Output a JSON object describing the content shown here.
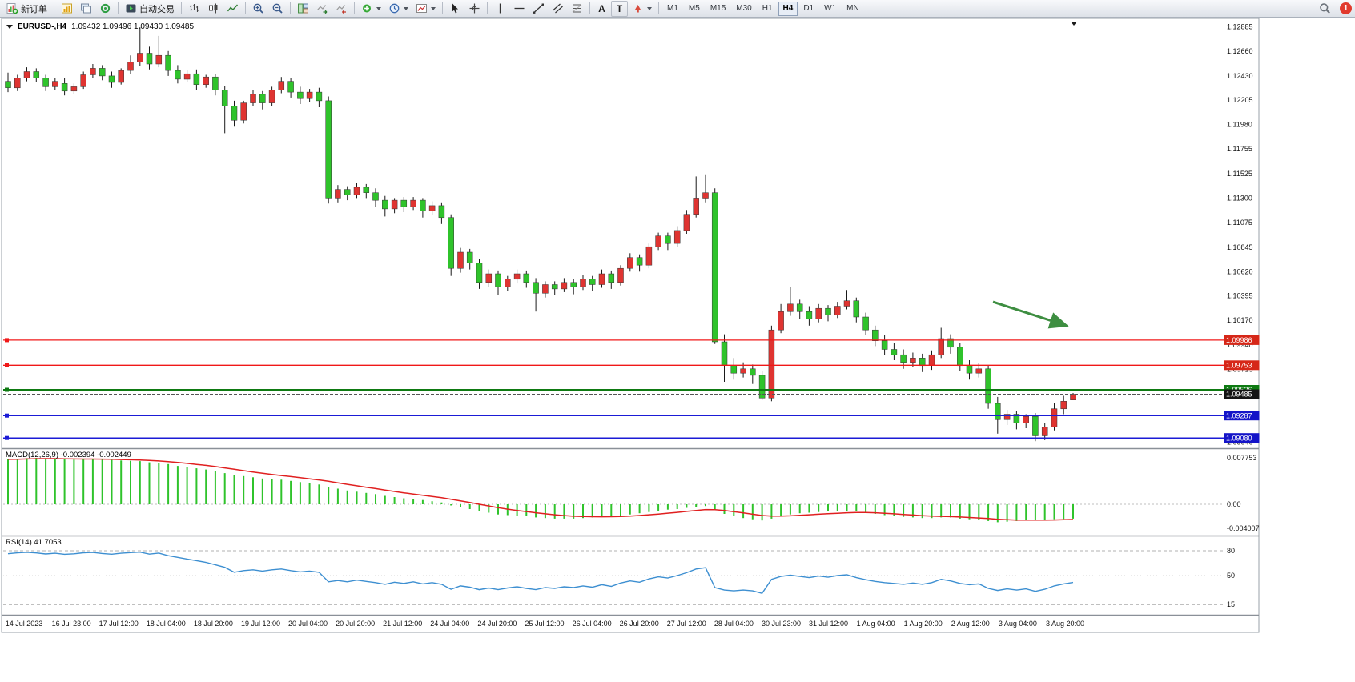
{
  "toolbar": {
    "new_order": "新订单",
    "auto_trading": "自动交易",
    "text_tool": "A",
    "label_tool": "T",
    "timeframes": [
      "M1",
      "M5",
      "M15",
      "M30",
      "H1",
      "H4",
      "D1",
      "W1",
      "MN"
    ],
    "active_timeframe": "H4",
    "notification_count": "1"
  },
  "chart_data": [
    {
      "type": "candlestick",
      "symbol": "EURUSD",
      "timeframe": "H4",
      "symbol_label": "EURUSD-,H4",
      "ohlc_label": "1.09432 1.09496 1.09430 1.09485",
      "ylim": [
        1.09,
        1.1294
      ],
      "colors": {
        "up": "#df3431",
        "down": "#2fc32b",
        "wick": "#1a1a1a",
        "body_border": "#333333"
      },
      "candles": [
        [
          1.1238,
          1.1246,
          1.1228,
          1.1232
        ],
        [
          1.1232,
          1.1244,
          1.1229,
          1.1241
        ],
        [
          1.1241,
          1.1251,
          1.1238,
          1.1247
        ],
        [
          1.1247,
          1.125,
          1.1237,
          1.1241
        ],
        [
          1.1241,
          1.1244,
          1.1229,
          1.1233
        ],
        [
          1.1233,
          1.1241,
          1.123,
          1.1238
        ],
        [
          1.1236,
          1.1241,
          1.1225,
          1.1229
        ],
        [
          1.1229,
          1.1236,
          1.1226,
          1.1233
        ],
        [
          1.1233,
          1.1247,
          1.1231,
          1.1244
        ],
        [
          1.1244,
          1.1254,
          1.1241,
          1.125
        ],
        [
          1.125,
          1.1253,
          1.1239,
          1.1243
        ],
        [
          1.1243,
          1.1247,
          1.1232,
          1.1237
        ],
        [
          1.1237,
          1.125,
          1.1235,
          1.1248
        ],
        [
          1.1248,
          1.1262,
          1.1245,
          1.1256
        ],
        [
          1.1256,
          1.1288,
          1.1252,
          1.1264
        ],
        [
          1.1264,
          1.127,
          1.1249,
          1.1254
        ],
        [
          1.1254,
          1.128,
          1.1251,
          1.1262
        ],
        [
          1.1262,
          1.1266,
          1.1243,
          1.1248
        ],
        [
          1.1248,
          1.1253,
          1.1236,
          1.124
        ],
        [
          1.124,
          1.1248,
          1.1237,
          1.1245
        ],
        [
          1.1245,
          1.1249,
          1.123,
          1.1235
        ],
        [
          1.1235,
          1.1244,
          1.1232,
          1.1242
        ],
        [
          1.1242,
          1.1245,
          1.1225,
          1.123
        ],
        [
          1.123,
          1.1234,
          1.119,
          1.1215
        ],
        [
          1.1215,
          1.122,
          1.1196,
          1.1202
        ],
        [
          1.1202,
          1.122,
          1.1199,
          1.1218
        ],
        [
          1.1218,
          1.123,
          1.1215,
          1.1226
        ],
        [
          1.1226,
          1.1229,
          1.1212,
          1.1218
        ],
        [
          1.1218,
          1.1233,
          1.1215,
          1.123
        ],
        [
          1.123,
          1.1242,
          1.1227,
          1.1238
        ],
        [
          1.1238,
          1.1241,
          1.1223,
          1.1228
        ],
        [
          1.1228,
          1.1233,
          1.1217,
          1.1222
        ],
        [
          1.1222,
          1.1231,
          1.1219,
          1.1228
        ],
        [
          1.1228,
          1.1232,
          1.1214,
          1.122
        ],
        [
          1.122,
          1.1224,
          1.1125,
          1.113
        ],
        [
          1.113,
          1.1142,
          1.1126,
          1.1138
        ],
        [
          1.1138,
          1.1141,
          1.1128,
          1.1133
        ],
        [
          1.1133,
          1.1144,
          1.113,
          1.114
        ],
        [
          1.114,
          1.1143,
          1.113,
          1.1135
        ],
        [
          1.1135,
          1.1139,
          1.1122,
          1.1128
        ],
        [
          1.1128,
          1.1132,
          1.1113,
          1.112
        ],
        [
          1.112,
          1.113,
          1.1116,
          1.1128
        ],
        [
          1.1128,
          1.1131,
          1.1117,
          1.1122
        ],
        [
          1.1122,
          1.1131,
          1.1119,
          1.1128
        ],
        [
          1.1128,
          1.113,
          1.1112,
          1.1118
        ],
        [
          1.1118,
          1.1127,
          1.1114,
          1.1123
        ],
        [
          1.1123,
          1.1126,
          1.1106,
          1.1112
        ],
        [
          1.1112,
          1.1115,
          1.1058,
          1.1065
        ],
        [
          1.1065,
          1.1084,
          1.1061,
          1.108
        ],
        [
          1.108,
          1.1083,
          1.1064,
          1.107
        ],
        [
          1.107,
          1.1074,
          1.1046,
          1.1052
        ],
        [
          1.1052,
          1.1064,
          1.1048,
          1.106
        ],
        [
          1.106,
          1.1063,
          1.104,
          1.1048
        ],
        [
          1.1048,
          1.1058,
          1.1044,
          1.1055
        ],
        [
          1.1055,
          1.1064,
          1.1051,
          1.106
        ],
        [
          1.106,
          1.1063,
          1.1047,
          1.1052
        ],
        [
          1.1052,
          1.1056,
          1.1025,
          1.1042
        ],
        [
          1.1042,
          1.1053,
          1.1038,
          1.105
        ],
        [
          1.105,
          1.1053,
          1.104,
          1.1046
        ],
        [
          1.1046,
          1.1056,
          1.1043,
          1.1052
        ],
        [
          1.1052,
          1.1055,
          1.1041,
          1.1048
        ],
        [
          1.1048,
          1.1059,
          1.1045,
          1.1055
        ],
        [
          1.1055,
          1.1058,
          1.1044,
          1.105
        ],
        [
          1.105,
          1.1064,
          1.1047,
          1.106
        ],
        [
          1.106,
          1.1063,
          1.1046,
          1.1052
        ],
        [
          1.1052,
          1.1068,
          1.1049,
          1.1065
        ],
        [
          1.1065,
          1.1079,
          1.1062,
          1.1075
        ],
        [
          1.1075,
          1.1078,
          1.1062,
          1.1068
        ],
        [
          1.1068,
          1.1088,
          1.1065,
          1.1085
        ],
        [
          1.1085,
          1.1098,
          1.1082,
          1.1095
        ],
        [
          1.1095,
          1.1098,
          1.1082,
          1.1088
        ],
        [
          1.1088,
          1.1104,
          1.1085,
          1.11
        ],
        [
          1.11,
          1.1119,
          1.1097,
          1.1115
        ],
        [
          1.1115,
          1.115,
          1.1112,
          1.113
        ],
        [
          1.113,
          1.1152,
          1.1126,
          1.1135
        ],
        [
          1.1135,
          1.1139,
          1.0995,
          1.0997
        ],
        [
          1.0997,
          1.1004,
          1.096,
          1.0975
        ],
        [
          1.0975,
          1.0982,
          1.0962,
          1.0968
        ],
        [
          1.0968,
          1.0978,
          1.0964,
          1.0972
        ],
        [
          1.0972,
          1.0976,
          1.0958,
          1.0966
        ],
        [
          1.0966,
          1.097,
          1.0943,
          1.0945
        ],
        [
          1.0945,
          1.1012,
          1.0942,
          1.1008
        ],
        [
          1.1008,
          1.1032,
          1.1005,
          1.1025
        ],
        [
          1.1025,
          1.1048,
          1.1021,
          1.1032
        ],
        [
          1.1032,
          1.1036,
          1.1018,
          1.1025
        ],
        [
          1.1025,
          1.103,
          1.1012,
          1.1018
        ],
        [
          1.1018,
          1.1032,
          1.1015,
          1.1028
        ],
        [
          1.1028,
          1.1031,
          1.1016,
          1.1022
        ],
        [
          1.1022,
          1.1034,
          1.1019,
          1.103
        ],
        [
          1.103,
          1.1045,
          1.1027,
          1.1035
        ],
        [
          1.1035,
          1.1038,
          1.1015,
          1.102
        ],
        [
          1.102,
          1.1024,
          1.1003,
          1.1008
        ],
        [
          1.1008,
          1.1012,
          1.0993,
          1.0998
        ],
        [
          1.0998,
          1.1003,
          1.0985,
          1.099
        ],
        [
          1.099,
          1.0996,
          1.098,
          1.0985
        ],
        [
          1.0985,
          1.099,
          1.0972,
          1.0978
        ],
        [
          1.0978,
          1.0987,
          1.0974,
          1.0982
        ],
        [
          1.0982,
          1.0986,
          1.0969,
          1.0975
        ],
        [
          1.0975,
          1.0989,
          1.0971,
          1.0985
        ],
        [
          1.0985,
          1.101,
          1.0982,
          1.1
        ],
        [
          1.1,
          1.1004,
          1.0986,
          1.0992
        ],
        [
          1.0992,
          1.0996,
          1.097,
          1.0975
        ],
        [
          1.0975,
          1.098,
          1.0962,
          1.0968
        ],
        [
          1.0968,
          1.0977,
          1.0964,
          1.0972
        ],
        [
          1.0972,
          1.0975,
          1.0935,
          1.094
        ],
        [
          1.094,
          1.0946,
          1.0912,
          1.0925
        ],
        [
          1.0925,
          1.0934,
          1.092,
          1.093
        ],
        [
          1.093,
          1.0933,
          1.0916,
          1.0922
        ],
        [
          1.0922,
          1.093,
          1.0917,
          1.0928
        ],
        [
          1.0928,
          1.0931,
          1.0905,
          1.091
        ],
        [
          1.091,
          1.0922,
          1.0906,
          1.0918
        ],
        [
          1.0918,
          1.094,
          1.0915,
          1.0935
        ],
        [
          1.0935,
          1.0947,
          1.093,
          1.0942
        ],
        [
          1.09432,
          1.09496,
          1.0943,
          1.09485
        ]
      ],
      "hlines": [
        {
          "price": 1.09986,
          "label": "1.09986",
          "color": "#f01818",
          "tag_bg": "#d62718",
          "width": 1.3
        },
        {
          "price": 1.09753,
          "label": "1.09753",
          "color": "#f01818",
          "tag_bg": "#d62718",
          "width": 1.3
        },
        {
          "price": 1.09526,
          "label": "1.09526",
          "color": "#0e7a12",
          "tag_bg": "#0e7a12",
          "width": 2
        },
        {
          "price": 1.09287,
          "label": "1.09287",
          "color": "#1b1bd6",
          "tag_bg": "#1414c8",
          "width": 1.5
        },
        {
          "price": 1.0908,
          "label": "1.09080",
          "color": "#1b1bd6",
          "tag_bg": "#1414c8",
          "width": 1.5
        }
      ],
      "current_price": {
        "price": 1.09485,
        "label": "1.09485",
        "tag_bg": "#141414"
      },
      "price_axis": [
        "1.12885",
        "1.12660",
        "1.12430",
        "1.12205",
        "1.11980",
        "1.11755",
        "1.11525",
        "1.11300",
        "1.11075",
        "1.10845",
        "1.10620",
        "1.10395",
        "1.10170",
        "1.09940",
        "1.09715",
        "1.09490",
        "1.09265",
        "1.09040"
      ],
      "dates": [
        "14 Jul 2023",
        "16 Jul 23:00",
        "17 Jul 12:00",
        "18 Jul 04:00",
        "18 Jul 20:00",
        "19 Jul 12:00",
        "20 Jul 04:00",
        "20 Jul 20:00",
        "21 Jul 12:00",
        "24 Jul 04:00",
        "24 Jul 20:00",
        "25 Jul 12:00",
        "26 Jul 04:00",
        "26 Jul 20:00",
        "27 Jul 12:00",
        "28 Jul 04:00",
        "30 Jul 23:00",
        "31 Jul 12:00",
        "1 Aug 04:00",
        "1 Aug 20:00",
        "2 Aug 12:00",
        "3 Aug 04:00",
        "3 Aug 20:00"
      ],
      "arrow": {
        "from_index": 104.5,
        "from_price": 1.1034,
        "to_index": 112.3,
        "to_price": 1.1012,
        "color": "#3e8e41"
      }
    },
    {
      "type": "bar",
      "label": "MACD(12,26,9) -0.002394 -0.002449",
      "main_value": -0.002394,
      "signal_value": -0.002449,
      "color": "#2fc32b",
      "signal_color": "#e02020",
      "ylim": [
        -0.00508,
        0.00895
      ],
      "scale": [
        {
          "value": 0.007753,
          "text": "0.007753"
        },
        {
          "value": 0,
          "text": "0.00"
        },
        {
          "value": -0.004007,
          "text": "-0.004007"
        }
      ],
      "values": [
        0.0075,
        0.0076,
        0.0077,
        0.00775,
        0.0077,
        0.0076,
        0.0075,
        0.00745,
        0.0075,
        0.00755,
        0.0075,
        0.0074,
        0.0073,
        0.00725,
        0.0072,
        0.007,
        0.0069,
        0.0067,
        0.0064,
        0.0062,
        0.006,
        0.0058,
        0.0055,
        0.0052,
        0.0049,
        0.0047,
        0.0045,
        0.0043,
        0.0042,
        0.0041,
        0.0039,
        0.0037,
        0.0035,
        0.0033,
        0.0029,
        0.0026,
        0.0023,
        0.0021,
        0.0019,
        0.0017,
        0.0014,
        0.0012,
        0.001,
        0.0009,
        0.0007,
        0.0005,
        0.0003,
        -0.0002,
        -0.0005,
        -0.0008,
        -0.0012,
        -0.0014,
        -0.0017,
        -0.0018,
        -0.0019,
        -0.002,
        -0.0022,
        -0.0023,
        -0.0024,
        -0.0024,
        -0.0024,
        -0.0023,
        -0.0022,
        -0.0021,
        -0.002,
        -0.0019,
        -0.0017,
        -0.0015,
        -0.0013,
        -0.0011,
        -0.0009,
        -0.0008,
        -0.0006,
        -0.0004,
        -0.0003,
        -0.001,
        -0.0016,
        -0.002,
        -0.0023,
        -0.0025,
        -0.0027,
        -0.0024,
        -0.002,
        -0.0017,
        -0.0015,
        -0.0014,
        -0.0013,
        -0.0012,
        -0.0012,
        -0.0011,
        -0.0012,
        -0.0014,
        -0.0016,
        -0.0018,
        -0.002,
        -0.0021,
        -0.0022,
        -0.0023,
        -0.0023,
        -0.0022,
        -0.0022,
        -0.0024,
        -0.0025,
        -0.0026,
        -0.0028,
        -0.003,
        -0.0029,
        -0.0028,
        -0.0027,
        -0.0027,
        -0.0026,
        -0.0025,
        -0.00245,
        -0.002394
      ]
    },
    {
      "type": "line",
      "label": "RSI(14) 41.7053",
      "last_value": 41.7053,
      "color": "#3d8fd1",
      "ylim": [
        2.6,
        96.5
      ],
      "levels": [
        80,
        50,
        15
      ],
      "values": [
        76.5,
        77.5,
        78.2,
        77.4,
        76.2,
        77.0,
        75.8,
        76.4,
        77.6,
        78.0,
        76.8,
        75.9,
        77.0,
        77.8,
        78.4,
        76.0,
        77.2,
        74.0,
        72.0,
        70.0,
        68.0,
        66.0,
        63.0,
        60.0,
        54.0,
        56.0,
        57.0,
        55.5,
        57.0,
        58.0,
        56.0,
        54.5,
        55.5,
        54.0,
        42.5,
        44.0,
        42.5,
        44.5,
        43.0,
        41.5,
        39.5,
        42.0,
        40.5,
        42.5,
        40.0,
        41.5,
        39.5,
        33.5,
        37.5,
        36.0,
        33.0,
        35.0,
        33.0,
        35.0,
        36.5,
        34.5,
        33.0,
        35.5,
        34.5,
        36.5,
        35.5,
        37.5,
        36.0,
        39.0,
        37.0,
        41.0,
        43.5,
        42.0,
        46.0,
        48.5,
        47.0,
        50.0,
        53.5,
        58.0,
        59.5,
        35.5,
        32.5,
        31.5,
        32.5,
        31.5,
        28.5,
        45.5,
        49.0,
        50.5,
        49.0,
        47.5,
        49.5,
        48.0,
        50.0,
        51.0,
        47.5,
        45.0,
        43.0,
        41.5,
        40.5,
        39.5,
        41.0,
        39.5,
        41.5,
        45.5,
        43.5,
        40.5,
        39.0,
        40.0,
        34.5,
        32.0,
        34.0,
        32.5,
        34.0,
        31.0,
        33.5,
        37.5,
        40.0,
        41.7
      ]
    }
  ]
}
